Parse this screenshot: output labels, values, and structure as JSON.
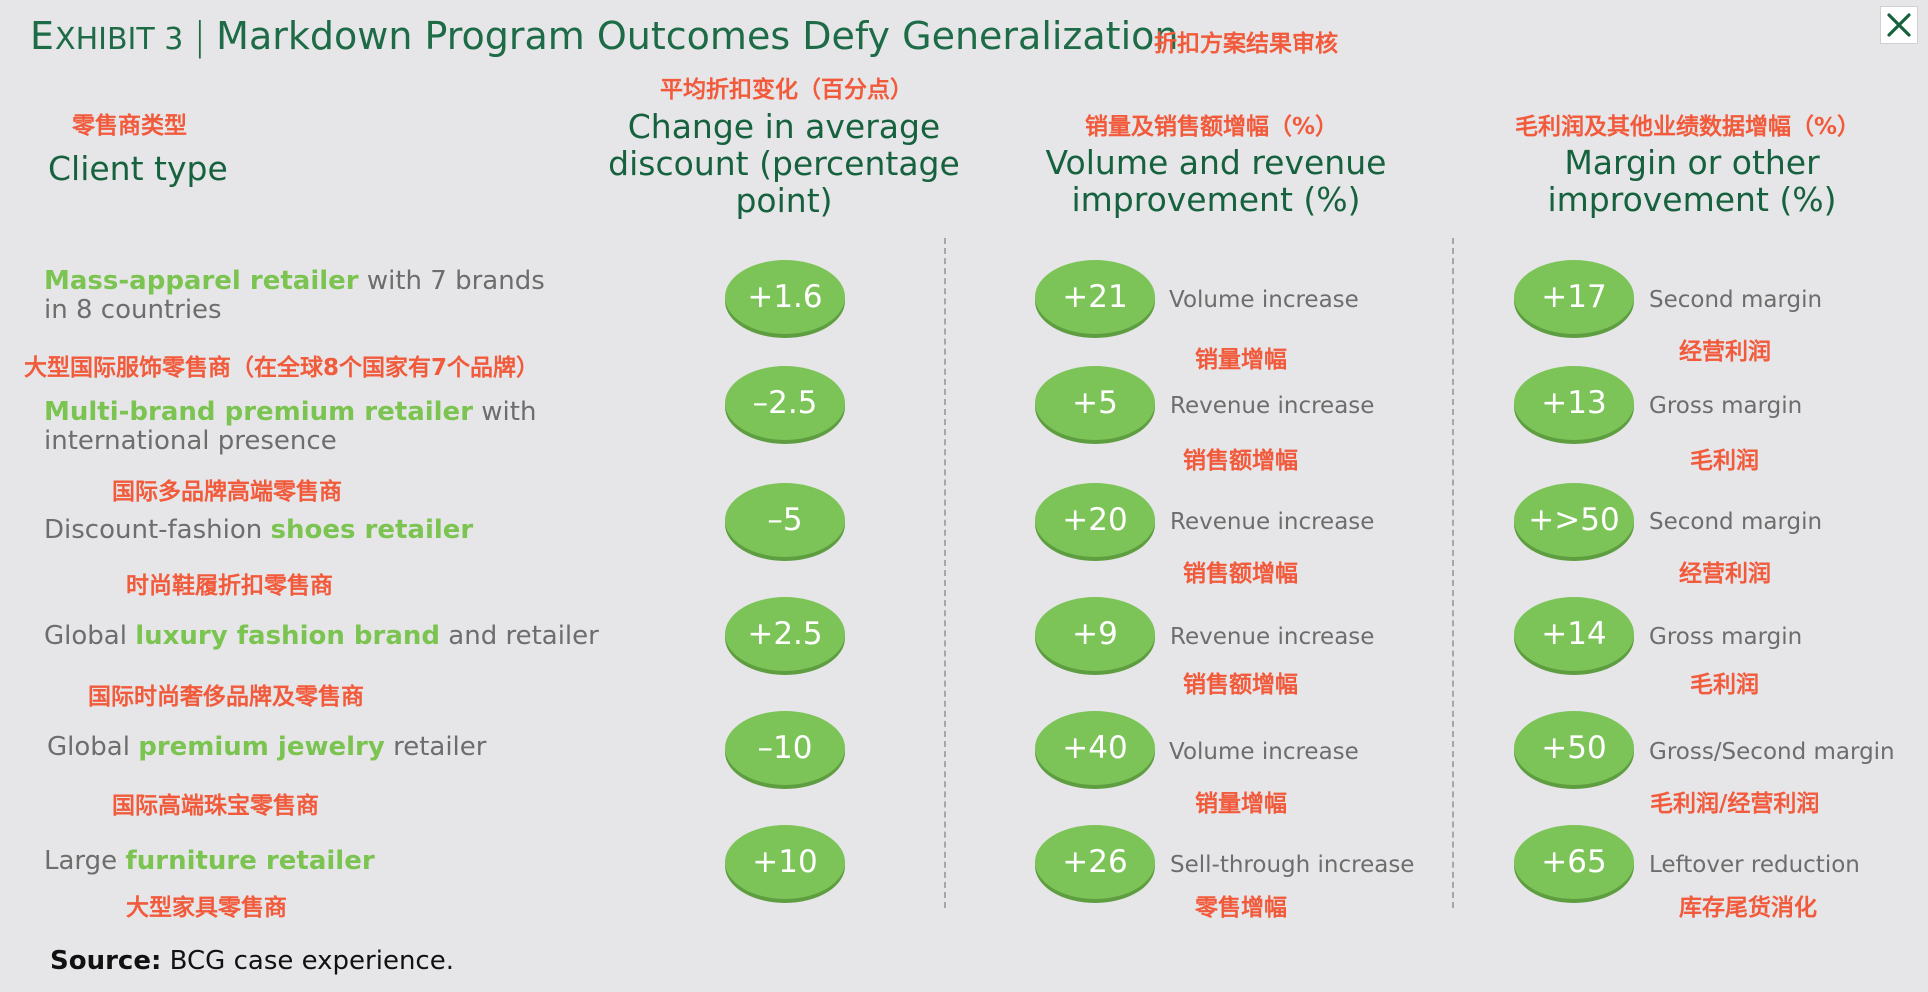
{
  "title": {
    "exhibit_prefix": "E",
    "exhibit_rest": "XHIBIT 3",
    "separator": "|",
    "main": "Markdown Program Outcomes Defy Generalization",
    "cn": "折扣方案结果审核"
  },
  "close_icon": "close-icon",
  "headers": {
    "client": {
      "cn": "零售商类型",
      "en": "Client type"
    },
    "discount": {
      "cn": "平均折扣变化（百分点）",
      "en_line1": "Change in average",
      "en_line2": "discount (percentage",
      "en_line3": "point)"
    },
    "volume": {
      "cn": "销量及销售额增幅（%）",
      "en_line1": "Volume and revenue",
      "en_line2": "improvement (%)"
    },
    "margin": {
      "cn": "毛利润及其他业绩数据增幅（%）",
      "en_line1": "Margin or other",
      "en_line2": "improvement (%)"
    }
  },
  "rows": [
    {
      "client_pre": "",
      "client_hl": "Mass-apparel retailer",
      "client_post": " with 7 brands in 8 countries",
      "client_cn": "大型国际服饰零售商（在全球8个国家有7个品牌）",
      "discount": "+1.6",
      "volume": "+21",
      "volume_desc": "Volume increase",
      "volume_cn": "销量增幅",
      "margin": "+17",
      "margin_desc": "Second margin",
      "margin_cn": "经营利润"
    },
    {
      "client_pre": "",
      "client_hl": "Multi-brand premium retailer",
      "client_post": " with international presence",
      "client_cn": "国际多品牌高端零售商",
      "discount": "–2.5",
      "volume": "+5",
      "volume_desc": "Revenue increase",
      "volume_cn": "销售额增幅",
      "margin": "+13",
      "margin_desc": "Gross margin",
      "margin_cn": "毛利润"
    },
    {
      "client_pre": "Discount-fashion ",
      "client_hl": "shoes retailer",
      "client_post": "",
      "client_cn": "时尚鞋履折扣零售商",
      "discount": "–5",
      "volume": "+20",
      "volume_desc": "Revenue increase",
      "volume_cn": "销售额增幅",
      "margin": "+>50",
      "margin_desc": "Second margin",
      "margin_cn": "经营利润"
    },
    {
      "client_pre": "Global ",
      "client_hl": "luxury fashion brand",
      "client_post": " and retailer",
      "client_cn": "国际时尚奢侈品牌及零售商",
      "discount": "+2.5",
      "volume": "+9",
      "volume_desc": "Revenue increase",
      "volume_cn": "销售额增幅",
      "margin": "+14",
      "margin_desc": "Gross margin",
      "margin_cn": "毛利润"
    },
    {
      "client_pre": "Global ",
      "client_hl": "premium jewelry",
      "client_post": " retailer",
      "client_cn": "国际高端珠宝零售商",
      "discount": "–10",
      "volume": "+40",
      "volume_desc": "Volume increase",
      "volume_cn": "销量增幅",
      "margin": "+50",
      "margin_desc": "Gross/Second margin",
      "margin_cn": "毛利润/经营利润"
    },
    {
      "client_pre": "Large ",
      "client_hl": "furniture retailer",
      "client_post": "",
      "client_cn": "大型家具零售商",
      "discount": "+10",
      "volume": "+26",
      "volume_desc": "Sell-through increase",
      "volume_cn": "零售增幅",
      "margin": "+65",
      "margin_desc": "Leftover reduction",
      "margin_cn": "库存尾货消化"
    }
  ],
  "source": {
    "label": "Source:",
    "text": " BCG case experience."
  }
}
